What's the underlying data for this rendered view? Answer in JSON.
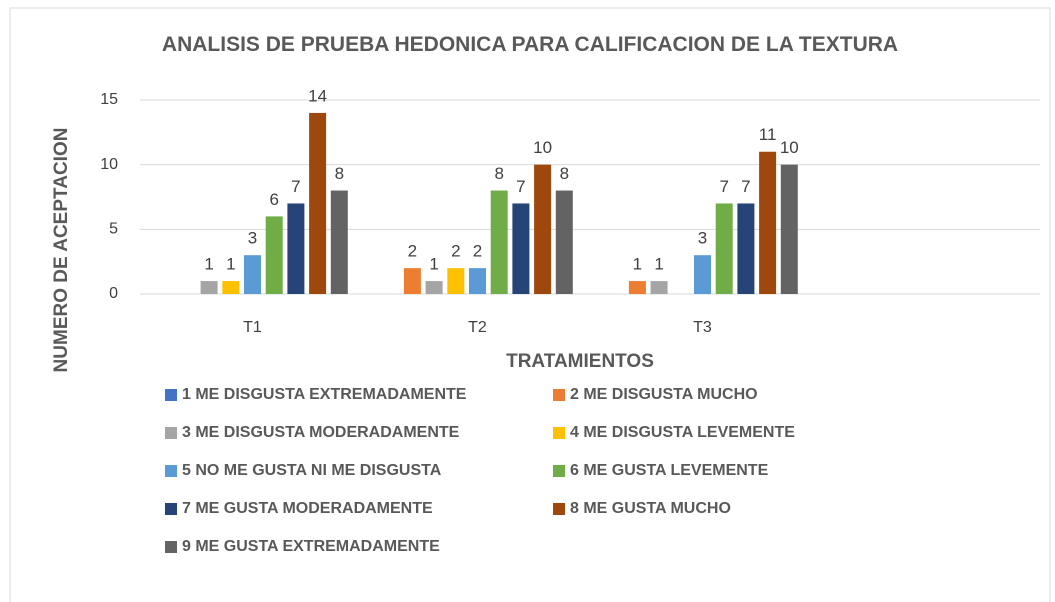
{
  "chart_data": {
    "type": "bar",
    "title": "ANALISIS DE PRUEBA HEDONICA PARA CALIFICACION DE LA TEXTURA",
    "x_label": "TRATAMIENTOS",
    "y_label": "NUMERO DE ACEPTACION",
    "categories": [
      "T1",
      "T2",
      "T3",
      null
    ],
    "series": [
      {
        "name": "1 ME DISGUSTA EXTREMADAMENTE",
        "color": "#4472c4",
        "values": [
          null,
          null,
          null,
          null
        ]
      },
      {
        "name": "2 ME DISGUSTA MUCHO",
        "color": "#ed7d31",
        "values": [
          null,
          2,
          1,
          null
        ]
      },
      {
        "name": "3 ME DISGUSTA MODERADAMENTE",
        "color": "#a5a5a5",
        "values": [
          1,
          1,
          1,
          null
        ]
      },
      {
        "name": "4 ME DISGUSTA LEVEMENTE",
        "color": "#ffc000",
        "values": [
          1,
          2,
          null,
          null
        ]
      },
      {
        "name": "5 NO ME GUSTA NI ME DISGUSTA",
        "color": "#5b9bd5",
        "values": [
          3,
          2,
          3,
          null
        ]
      },
      {
        "name": "6 ME GUSTA LEVEMENTE",
        "color": "#70ad47",
        "values": [
          6,
          8,
          7,
          null
        ]
      },
      {
        "name": "7 ME GUSTA MODERADAMENTE",
        "color": "#264478",
        "values": [
          7,
          7,
          7,
          null
        ]
      },
      {
        "name": "8 ME GUSTA MUCHO",
        "color": "#9e480e",
        "values": [
          14,
          10,
          11,
          null
        ]
      },
      {
        "name": "9 ME GUSTA EXTREMADAMENTE",
        "color": "#636363",
        "values": [
          8,
          8,
          10,
          null
        ]
      }
    ],
    "ylim": [
      0,
      15
    ],
    "yticks": [
      0,
      5,
      10,
      15
    ],
    "grid": true
  }
}
